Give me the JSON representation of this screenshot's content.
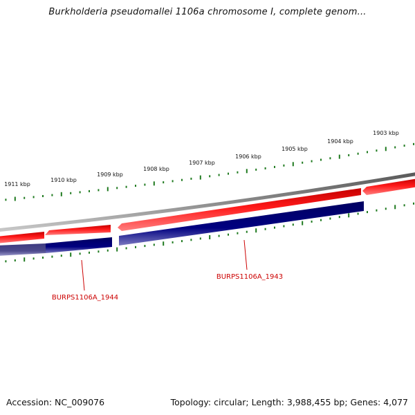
{
  "title": "Burkholderia pseudomallei 1106a chromosome I, complete genom...",
  "footer": {
    "accession": "Accession: NC_009076",
    "summary": "Topology: circular; Length: 3,988,455 bp; Genes: 4,077"
  },
  "ticks": [
    {
      "label": "1903 kbp"
    },
    {
      "label": "1904 kbp"
    },
    {
      "label": "1905 kbp"
    },
    {
      "label": "1906 kbp"
    },
    {
      "label": "1907 kbp"
    },
    {
      "label": "1908 kbp"
    },
    {
      "label": "1909 kbp"
    },
    {
      "label": "1910 kbp"
    },
    {
      "label": "1911 kbp"
    }
  ],
  "genes": [
    {
      "label": "BURPS1106A_1943"
    },
    {
      "label": "BURPS1106A_1944"
    }
  ],
  "colors": {
    "backbone": "#7a7a7a",
    "forward_feature": "#ee0000",
    "reverse_feature": "#000080",
    "highlight_feature": "#4d4a8c",
    "tick": "#1f7a1f",
    "gene_label": "#cc0000"
  }
}
